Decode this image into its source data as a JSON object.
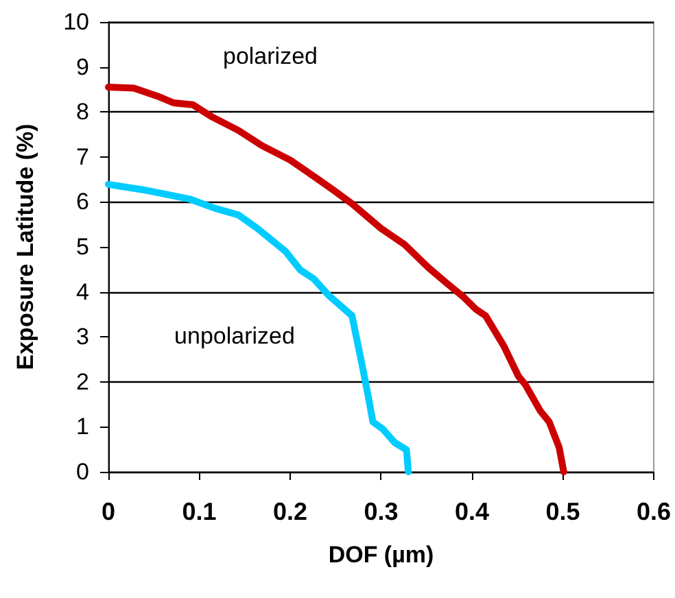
{
  "chart_data": {
    "type": "line",
    "xlabel": "DOF (µm)",
    "ylabel": "Exposure Latitude (%)",
    "xlim": [
      0,
      0.6
    ],
    "xticks": [
      0,
      0.1,
      0.2,
      0.3,
      0.4,
      0.5,
      0.6
    ],
    "ylim": [
      0,
      10
    ],
    "yticks": [
      0,
      1,
      2,
      3,
      4,
      5,
      6,
      7,
      8,
      9,
      10
    ],
    "grid": "y",
    "marker": "none",
    "line_style": "solid",
    "series": [
      {
        "name": "polarized",
        "color": "#cc0000",
        "x": [
          0,
          0.028,
          0.054,
          0.072,
          0.093,
          0.114,
          0.143,
          0.169,
          0.2,
          0.226,
          0.247,
          0.268,
          0.3,
          0.326,
          0.352,
          0.373,
          0.391,
          0.404,
          0.415,
          0.435,
          0.451,
          0.459,
          0.475,
          0.485,
          0.496,
          0.501
        ],
        "values": [
          8.55,
          8.53,
          8.35,
          8.2,
          8.16,
          7.89,
          7.59,
          7.25,
          6.93,
          6.57,
          6.27,
          5.96,
          5.41,
          5.05,
          4.54,
          4.18,
          3.88,
          3.62,
          3.47,
          2.8,
          2.13,
          1.93,
          1.36,
          1.11,
          0.54,
          0
        ]
      },
      {
        "name": "unpolarized",
        "color": "#00ccff",
        "x": [
          0,
          0.038,
          0.09,
          0.117,
          0.143,
          0.164,
          0.195,
          0.211,
          0.226,
          0.242,
          0.268,
          0.279,
          0.286,
          0.291,
          0.302,
          0.315,
          0.328,
          0.33
        ],
        "values": [
          6.39,
          6.27,
          6.06,
          5.86,
          5.71,
          5.41,
          4.9,
          4.49,
          4.29,
          3.93,
          3.47,
          2.39,
          1.67,
          1.11,
          0.95,
          0.65,
          0.49,
          0
        ]
      }
    ]
  }
}
